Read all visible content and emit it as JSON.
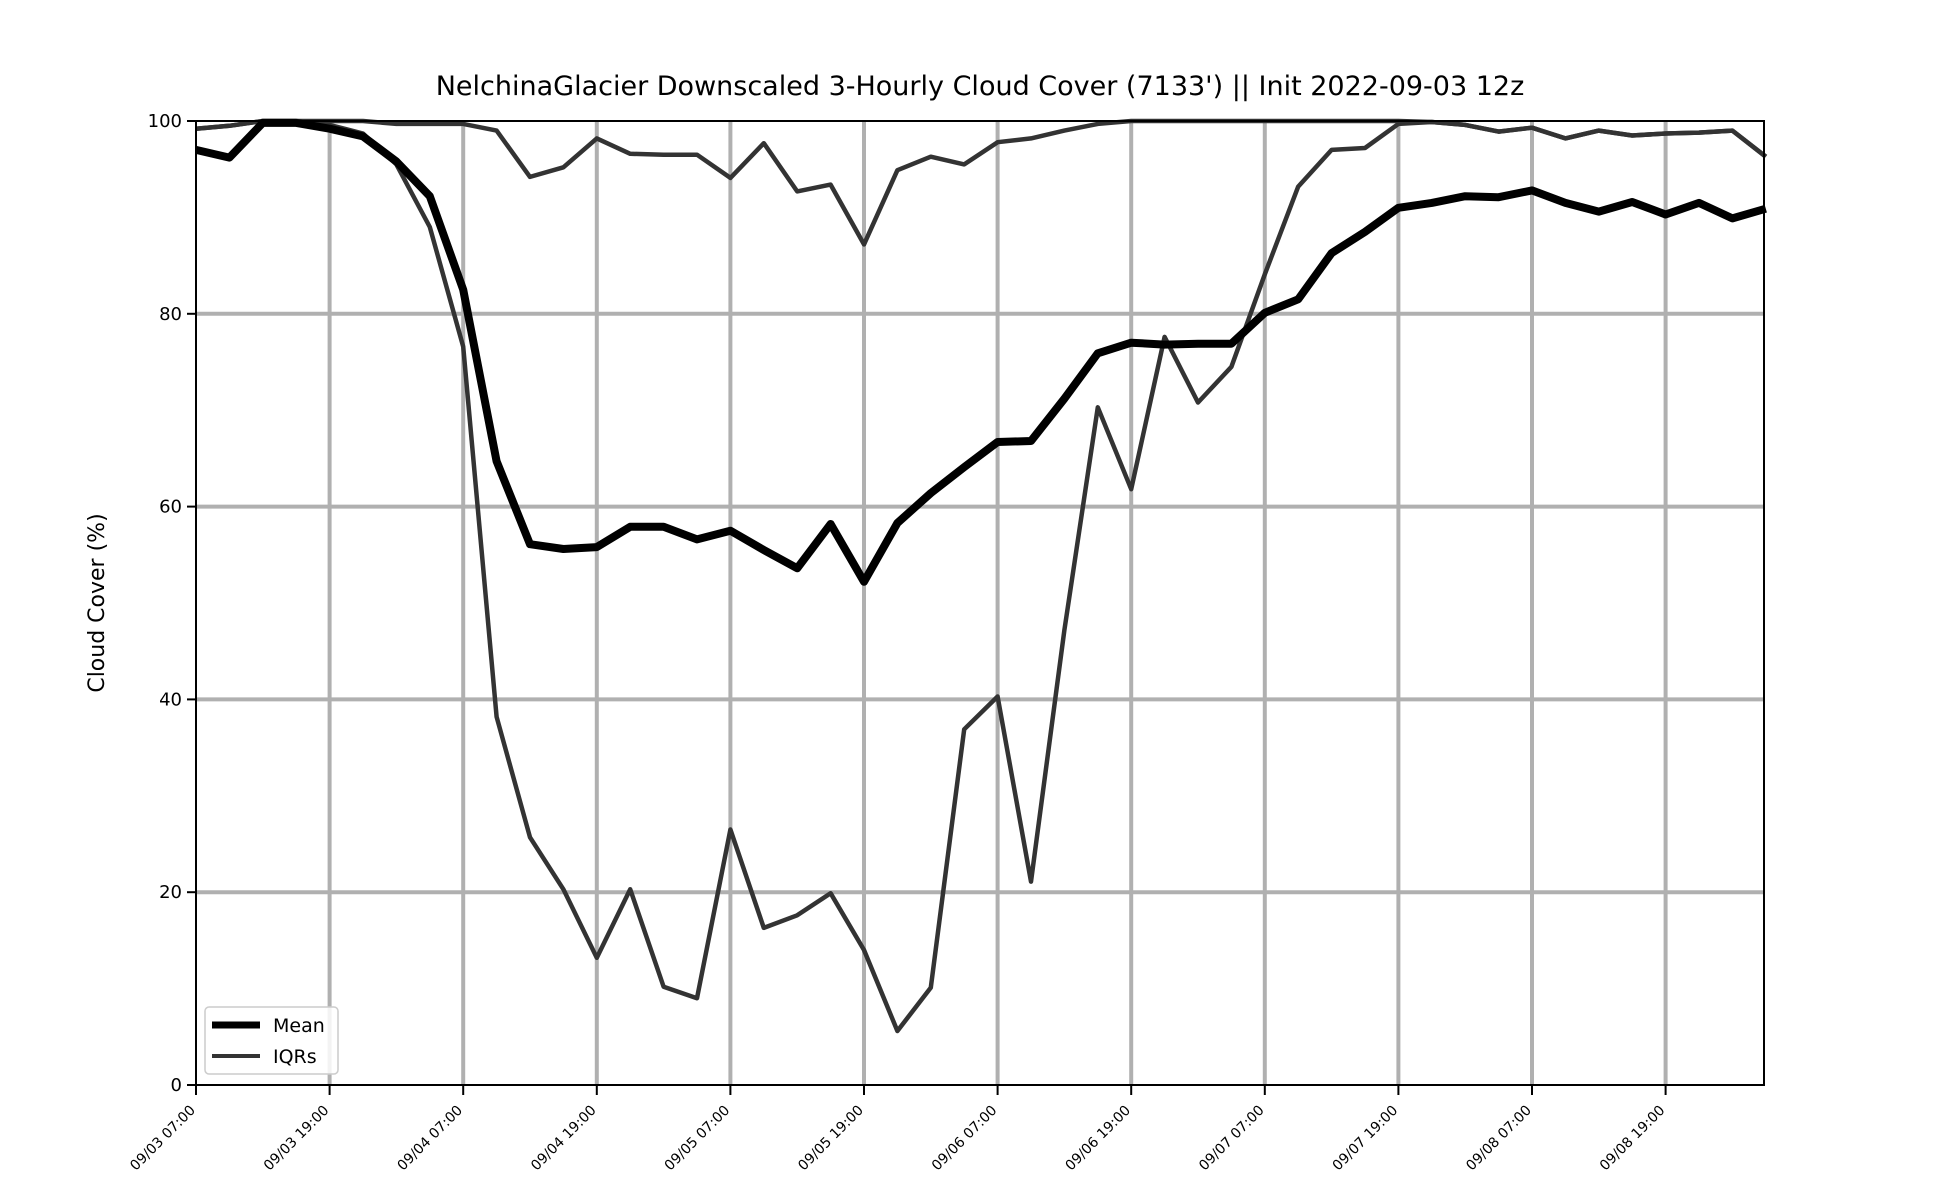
{
  "chart_data": {
    "type": "line",
    "title": "NelchinaGlacier Downscaled 3-Hourly Cloud Cover (7133') || Init 2022-09-03 12z",
    "xlabel": "",
    "ylabel": "Cloud Cover (%)",
    "ylim": [
      0,
      100
    ],
    "yticks": [
      0,
      20,
      40,
      60,
      80,
      100
    ],
    "xtick_labels": [
      "09/03 07:00",
      "09/03 19:00",
      "09/04 07:00",
      "09/04 19:00",
      "09/05 07:00",
      "09/05 19:00",
      "09/06 07:00",
      "09/06 19:00",
      "09/07 07:00",
      "09/07 19:00",
      "09/08 07:00",
      "09/08 19:00"
    ],
    "x_start": "09/03 07:00",
    "x_step_hours": 3,
    "grid": true,
    "legend_position": "lower-left",
    "colors": {
      "mean": "#000000",
      "iqr": "#333333",
      "grid": "#b0b0b0"
    },
    "series": [
      {
        "name": "Mean",
        "values": [
          97,
          96.2,
          99.8,
          99.8,
          99.2,
          98.4,
          95.8,
          92.2,
          82.5,
          64.7,
          56.1,
          55.6,
          55.8,
          57.9,
          57.9,
          56.6,
          57.5,
          55.5,
          53.6,
          58.2,
          52.2,
          58.3,
          61.4,
          64.1,
          66.7,
          66.8,
          71.2,
          75.9,
          77,
          76.8,
          76.9,
          76.9,
          80.1,
          81.5,
          86.3,
          88.5,
          91,
          91.5,
          92.2,
          92.1,
          92.8,
          91.5,
          90.6,
          91.6,
          90.3,
          91.5,
          89.9,
          90.9
        ]
      },
      {
        "name": "IQRs",
        "values": [
          99.2,
          99.5,
          100,
          100,
          99.6,
          98.7,
          95.5,
          89,
          76.6,
          38.2,
          25.7,
          20.3,
          13.2,
          20.3,
          10.2,
          9,
          26.5,
          16.3,
          17.6,
          19.9,
          14,
          5.6,
          10.1,
          36.9,
          40.3,
          21.1,
          47.2,
          70.3,
          61.8,
          77.6,
          70.8,
          74.5,
          84.1,
          93.2,
          97,
          97.2,
          99.7,
          99.9,
          99.6,
          98.9,
          99.3,
          98.2,
          99,
          98.5,
          98.7,
          98.8,
          99,
          96.3
        ]
      },
      {
        "name": "IQRs",
        "values": [
          99.2,
          99.5,
          100,
          100,
          100,
          100,
          99.7,
          99.7,
          99.7,
          99,
          94.2,
          95.2,
          98.2,
          96.6,
          96.5,
          96.5,
          94.1,
          97.7,
          92.7,
          93.4,
          87.2,
          94.9,
          96.3,
          95.5,
          97.8,
          98.2,
          99,
          99.7,
          100,
          100,
          100,
          100,
          100,
          100,
          100,
          100,
          100,
          99.9,
          99.6,
          98.9,
          99.3,
          98.2,
          99,
          98.5,
          98.7,
          98.8,
          99,
          96.3
        ]
      }
    ]
  }
}
